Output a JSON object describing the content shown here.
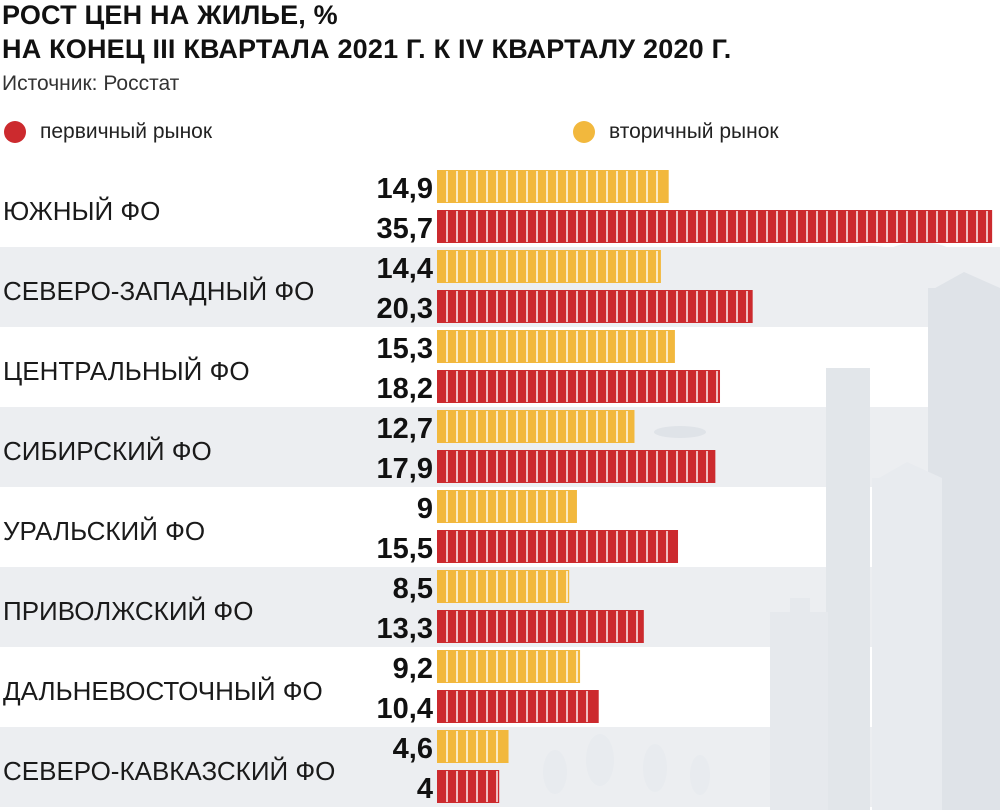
{
  "title_line1": "РОСТ ЦЕН НА ЖИЛЬЕ, %",
  "title_line2": "НА КОНЕЦ III КВАРТАЛА 2021 Г. К IV КВАРТАЛУ 2020 Г.",
  "source": "Источник: Росстат",
  "colors": {
    "primary": "#cc2a2e",
    "secondary": "#f2b83d",
    "band": "#eceef1",
    "city": "#dfe3e8"
  },
  "chart_data": {
    "type": "bar",
    "orientation": "horizontal",
    "categories": [
      "ЮЖНЫЙ ФО",
      "СЕВЕРО-ЗАПАДНЫЙ ФО",
      "ЦЕНТРАЛЬНЫЙ ФО",
      "СИБИРСКИЙ ФО",
      "УРАЛЬСКИЙ ФО",
      "ПРИВОЛЖСКИЙ ФО",
      "ДАЛЬНЕВОСТОЧНЫЙ ФО",
      "СЕВЕРО-КАВКАЗСКИЙ ФО"
    ],
    "series": [
      {
        "name": "вторичный рынок",
        "color": "#f2b83d",
        "values": [
          14.9,
          14.4,
          15.3,
          12.7,
          9,
          8.5,
          9.2,
          4.6
        ],
        "labels": [
          "14,9",
          "14,4",
          "15,3",
          "12,7",
          "9",
          "8,5",
          "9,2",
          "4,6"
        ]
      },
      {
        "name": "первичный рынок",
        "color": "#cc2a2e",
        "values": [
          35.7,
          20.3,
          18.2,
          17.9,
          15.5,
          13.3,
          10.4,
          4
        ],
        "labels": [
          "35,7",
          "20,3",
          "18,2",
          "17,9",
          "15,5",
          "13,3",
          "10,4",
          "4"
        ]
      }
    ],
    "legend": "top"
  }
}
